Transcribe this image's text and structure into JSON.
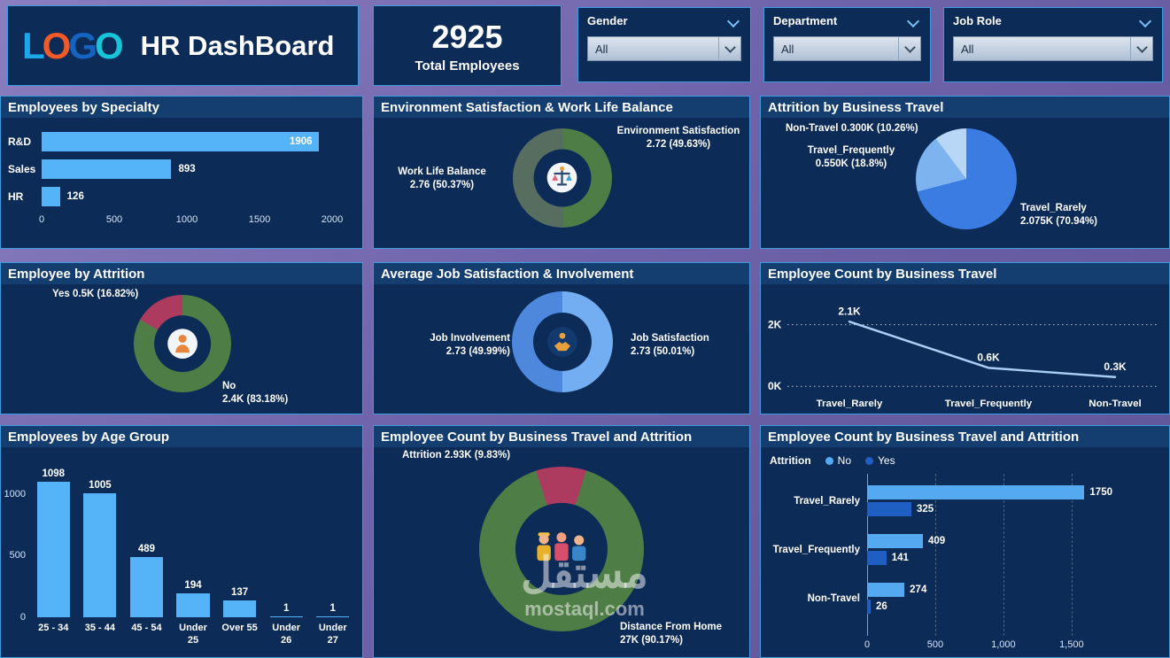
{
  "page": {
    "watermark_line1": "مستقل",
    "watermark_line2": "mostaql.com"
  },
  "colors": {
    "panel_bg": "#0c2b57",
    "panel_border": "#3f9be0",
    "background_purple": "#6f63ab",
    "bar_blue": "#54b4f7",
    "green": "#4e7d45",
    "crimson": "#ad3a5f"
  },
  "header": {
    "logo_letters": [
      {
        "ch": "L",
        "color": "#1ba7e8"
      },
      {
        "ch": "O",
        "color": "#f05a28"
      },
      {
        "ch": "G",
        "color": "#1464c0"
      },
      {
        "ch": "O",
        "color": "#18c5d8"
      }
    ],
    "title": "HR DashBoard",
    "total": {
      "value": "2925",
      "label": "Total Employees"
    },
    "filters": [
      {
        "label": "Gender",
        "value": "All"
      },
      {
        "label": "Department",
        "value": "All"
      },
      {
        "label": "Job Role",
        "value": "All"
      }
    ]
  },
  "chart_data": [
    {
      "id": "employees_by_specialty",
      "type": "bar",
      "orientation": "horizontal",
      "title": "Employees by Specialty",
      "categories": [
        "R&D",
        "Sales",
        "HR"
      ],
      "values": [
        1906,
        893,
        126
      ],
      "xticks": [
        "0",
        "500",
        "1000",
        "1500",
        "2000"
      ],
      "xmax": 2000,
      "bar_color": "#54b4f7"
    },
    {
      "id": "env_wlb",
      "type": "donut",
      "title": "Environment Satisfaction & Work Life Balance",
      "start_angle": 0,
      "center_icon": "balance-icon",
      "slices": [
        {
          "label": "Environment Satisfaction",
          "label_lines": [
            "Environment Satisfaction",
            "2.72 (49.63%)"
          ],
          "value": 2.72,
          "pct": 49.63,
          "color": "#4e7d45"
        },
        {
          "label": "Work Life Balance",
          "label_lines": [
            "Work Life Balance",
            "2.76 (50.37%)"
          ],
          "value": 2.76,
          "pct": 50.37,
          "color": "#566d60"
        }
      ]
    },
    {
      "id": "attrition_by_travel",
      "type": "pie",
      "title": "Attrition by Business Travel",
      "start_angle": 0,
      "slices": [
        {
          "label": "Travel_Rarely",
          "label_lines": [
            "Travel_Rarely",
            "2.075K (70.94%)"
          ],
          "value": "2.075K",
          "pct": 70.94,
          "color": "#3a7ce2"
        },
        {
          "label": "Travel_Frequently",
          "label_lines": [
            "Travel_Frequently",
            "0.550K (18.8%)"
          ],
          "value": "0.550K",
          "pct": 18.8,
          "color": "#7db3ee"
        },
        {
          "label": "Non-Travel",
          "label_lines": [
            "Non-Travel 0.300K (10.26%)"
          ],
          "value": "0.300K",
          "pct": 10.26,
          "color": "#b8d7f6"
        }
      ]
    },
    {
      "id": "employee_by_attrition",
      "type": "donut",
      "title": "Employee by Attrition",
      "start_angle": 0,
      "center_icon": "person-icon",
      "slices": [
        {
          "label": "No",
          "label_lines": [
            "No",
            "2.4K (83.18%)"
          ],
          "value": "2.4K",
          "pct": 83.18,
          "color": "#4e7d45"
        },
        {
          "label": "Yes",
          "label_lines": [
            "Yes 0.5K (16.82%)"
          ],
          "value": "0.5K",
          "pct": 16.82,
          "color": "#ad3a5f"
        }
      ]
    },
    {
      "id": "avg_job_satisfaction_involvement",
      "type": "donut",
      "title": "Average Job Satisfaction & Involvement",
      "start_angle": 0,
      "center_icon": "handshake-icon",
      "slices": [
        {
          "label": "Job Satisfaction",
          "label_lines": [
            "Job Satisfaction",
            "2.73 (50.01%)"
          ],
          "value": 2.73,
          "pct": 50.01,
          "color": "#74aef2"
        },
        {
          "label": "Job Involvement",
          "label_lines": [
            "Job Involvement",
            "2.73 (49.99%)"
          ],
          "value": 2.73,
          "pct": 49.99,
          "color": "#4d88dd"
        }
      ]
    },
    {
      "id": "employee_count_by_business_travel",
      "type": "line",
      "title": "Employee Count by Business Travel",
      "categories": [
        "Travel_Rarely",
        "Travel_Frequently",
        "Non-Travel"
      ],
      "values": [
        2.1,
        0.6,
        0.3
      ],
      "point_labels": [
        "2.1K",
        "0.6K",
        "0.3K"
      ],
      "yticks": [
        "0K",
        "2K"
      ],
      "ymax": 2.2,
      "line_color": "#a9cdf3"
    },
    {
      "id": "employees_by_age_group",
      "type": "bar",
      "orientation": "vertical",
      "title": "Employees by Age Group",
      "categories": [
        "25 - 34",
        "35 - 44",
        "45 - 54",
        "Under 25",
        "Over 55",
        "Under 26",
        "Under 27"
      ],
      "values": [
        1098,
        1005,
        489,
        194,
        137,
        1,
        1
      ],
      "yticks": [
        "0",
        "500",
        "1000"
      ],
      "ymax": 1150,
      "bar_color": "#54b4f7"
    },
    {
      "id": "count_by_travel_attrition_donut",
      "type": "donut",
      "title": "Employee Count by Business Travel and Attrition",
      "start_angle": 342,
      "center_icon": "people-icon",
      "slices": [
        {
          "label": "Attrition",
          "label_lines": [
            "Attrition 2.93K (9.83%)"
          ],
          "value": "2.93K",
          "pct": 9.83,
          "color": "#ad3a5f"
        },
        {
          "label": "Distance From Home",
          "label_lines": [
            "Distance From Home",
            "27K (90.17%)"
          ],
          "value": "27K",
          "pct": 90.17,
          "color": "#4e7d45"
        }
      ]
    },
    {
      "id": "count_by_travel_attrition_bars",
      "type": "grouped_bar",
      "title": "Employee Count by Business Travel and Attrition",
      "legend_title": "Attrition",
      "categories": [
        "Travel_Rarely",
        "Travel_Frequently",
        "Non-Travel"
      ],
      "series": [
        {
          "name": "No",
          "color": "#54a9f0",
          "values": [
            1750,
            409,
            274
          ]
        },
        {
          "name": "Yes",
          "color": "#1f5ec2",
          "values": [
            325,
            141,
            26
          ]
        }
      ],
      "xticks": [
        "0",
        "500",
        "1,000",
        "1,500"
      ],
      "xmax": 1800
    }
  ]
}
